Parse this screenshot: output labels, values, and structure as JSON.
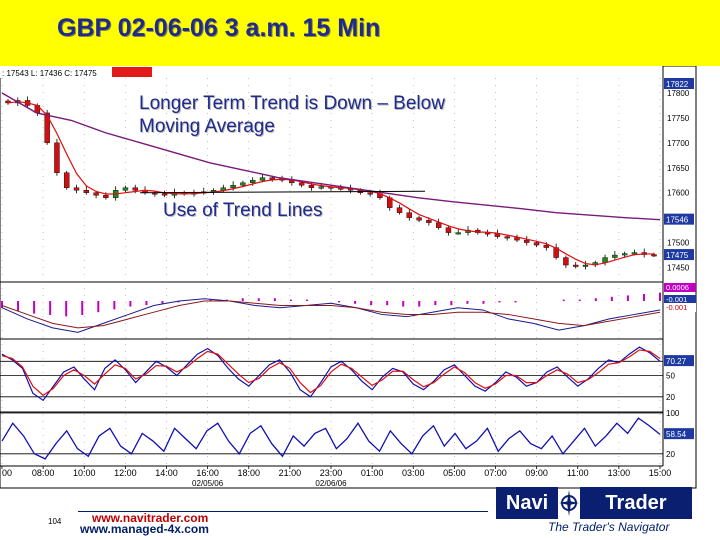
{
  "title": "GBP 02-06-06 3 a.m. 15 Min",
  "annotations": {
    "trend_line1": "Longer Term Trend is Down – Below",
    "trend_line2": "Moving Average",
    "trend_lines": "Use of Trend Lines"
  },
  "quote_header": ": 17543  L: 17436  C: 17475",
  "footer": {
    "link1": "www.navitrader.com",
    "link2": "www.managed-4x.com",
    "slide_number": "104",
    "logo_left": "Navi",
    "logo_right": "Trader",
    "tagline": "The Trader's Navigator"
  },
  "colors": {
    "title_band": "#ffff00",
    "title_text": "#1f2a8c",
    "candle_up": "#1a8a1a",
    "candle_down": "#d01010",
    "ma_fast": "#e01010",
    "ma_slow": "#7a1a7a",
    "oscillator": "#1010b0",
    "price_marker": "#1e3aa0"
  },
  "chart_data": {
    "type": "candlestick",
    "x_tick_labels": [
      "00",
      "08:00",
      "10:00",
      "12:00",
      "14:00",
      "16:00",
      "18:00",
      "21:00",
      "23:00",
      "01:00",
      "03:00",
      "05:00",
      "07:00",
      "09:00",
      "11:00",
      "13:00",
      "15:00"
    ],
    "date_labels": [
      "02/05/06",
      "02/06/06"
    ],
    "price_axis": {
      "ticks": [
        17800,
        17750,
        17700,
        17650,
        17600,
        17500,
        17450
      ],
      "ylim": [
        17425,
        17830
      ],
      "markers": [
        {
          "label": "17822",
          "value": 17822
        },
        {
          "label": "17546",
          "value": 17546
        },
        {
          "label": "17475",
          "value": 17475
        }
      ]
    },
    "price_close": [
      17780,
      17785,
      17775,
      17760,
      17700,
      17640,
      17610,
      17605,
      17600,
      17595,
      17590,
      17605,
      17610,
      17605,
      17600,
      17598,
      17595,
      17600,
      17598,
      17600,
      17602,
      17605,
      17610,
      17615,
      17620,
      17625,
      17630,
      17628,
      17625,
      17620,
      17615,
      17610,
      17612,
      17610,
      17608,
      17605,
      17600,
      17598,
      17590,
      17570,
      17560,
      17550,
      17545,
      17540,
      17530,
      17520,
      17520,
      17525,
      17520,
      17518,
      17512,
      17510,
      17505,
      17500,
      17495,
      17490,
      17470,
      17455,
      17452,
      17455,
      17460,
      17470,
      17475,
      17478,
      17480,
      17476,
      17475
    ],
    "ma_slow_values": [
      17800,
      17760,
      17745,
      17720,
      17700,
      17680,
      17660,
      17645,
      17630,
      17620,
      17610,
      17600,
      17590,
      17582,
      17575,
      17568,
      17560,
      17555,
      17550,
      17546
    ],
    "trend_line": [
      17600,
      17603
    ],
    "indicator1": {
      "ticks": [
        "0.0006",
        "-0.001",
        "-0.001"
      ],
      "histogram": [
        -0.0005,
        -0.0007,
        -0.0009,
        -0.001,
        -0.0011,
        -0.001,
        -0.0008,
        -0.0006,
        -0.0004,
        -0.0003,
        -0.0002,
        -0.0001,
        0,
        0.0001,
        0.0001,
        0.0002,
        0.0002,
        0.0002,
        0.0001,
        0.0001,
        0,
        -0.0001,
        -0.0002,
        -0.0003,
        -0.0003,
        -0.0004,
        -0.0004,
        -0.0003,
        -0.0003,
        -0.0002,
        -0.0002,
        -0.0001,
        -0.0001,
        0,
        0,
        0.0001,
        0.0001,
        0.0002,
        0.0003,
        0.0004,
        0.0005,
        0.0006
      ],
      "line_a": [
        -0.0003,
        -0.0008,
        -0.0012,
        -0.0014,
        -0.001,
        -0.0006,
        -0.0002,
        0,
        0.0001,
        0,
        -0.0002,
        -0.0003,
        -0.0002,
        -0.0001,
        -0.0003,
        -0.0006,
        -0.0007,
        -0.0005,
        -0.0003,
        -0.0004,
        -0.0008,
        -0.001,
        -0.0013,
        -0.0011,
        -0.0008,
        -0.0006,
        -0.0004
      ],
      "line_b": [
        -0.0002,
        -0.0006,
        -0.001,
        -0.0012,
        -0.0011,
        -0.0008,
        -0.0005,
        -0.0002,
        0,
        0,
        -0.0001,
        -0.0002,
        -0.0002,
        -0.0002,
        -0.0003,
        -0.0005,
        -0.0006,
        -0.0006,
        -0.0005,
        -0.0005,
        -0.0006,
        -0.0008,
        -0.001,
        -0.0011,
        -0.0009,
        -0.0007,
        -0.0005
      ]
    },
    "indicator2": {
      "ticks": [
        "70.27",
        "50",
        "20"
      ],
      "ylim": [
        0,
        100
      ],
      "line_blue": [
        80,
        72,
        60,
        25,
        15,
        35,
        55,
        62,
        45,
        30,
        60,
        72,
        58,
        40,
        55,
        70,
        62,
        50,
        65,
        80,
        88,
        78,
        60,
        45,
        35,
        50,
        65,
        72,
        55,
        30,
        20,
        40,
        62,
        70,
        58,
        42,
        30,
        48,
        60,
        55,
        38,
        30,
        42,
        58,
        65,
        50,
        35,
        28,
        40,
        55,
        48,
        35,
        40,
        55,
        62,
        48,
        35,
        45,
        60,
        72,
        68,
        80,
        90,
        82,
        70
      ],
      "line_red": [
        78,
        74,
        62,
        35,
        22,
        32,
        50,
        58,
        50,
        38,
        52,
        65,
        60,
        45,
        52,
        64,
        63,
        55,
        62,
        74,
        84,
        80,
        66,
        52,
        40,
        46,
        60,
        68,
        60,
        40,
        26,
        36,
        55,
        66,
        60,
        48,
        36,
        44,
        56,
        56,
        44,
        34,
        40,
        52,
        62,
        54,
        40,
        32,
        38,
        50,
        50,
        40,
        40,
        50,
        58,
        52,
        40,
        44,
        54,
        66,
        68,
        76,
        86,
        84,
        74
      ]
    },
    "indicator3": {
      "ticks": [
        "100",
        "58.54",
        "20"
      ],
      "ylim": [
        0,
        100
      ],
      "values": [
        45,
        80,
        55,
        20,
        10,
        40,
        65,
        30,
        15,
        55,
        70,
        35,
        20,
        60,
        45,
        25,
        70,
        50,
        30,
        65,
        80,
        45,
        20,
        60,
        75,
        40,
        15,
        55,
        35,
        60,
        70,
        30,
        50,
        80,
        45,
        25,
        65,
        40,
        20,
        55,
        75,
        35,
        60,
        30,
        45,
        70,
        25,
        50,
        65,
        40,
        30,
        55,
        20,
        45,
        70,
        35,
        55,
        80,
        60,
        90,
        75,
        58
      ]
    }
  }
}
